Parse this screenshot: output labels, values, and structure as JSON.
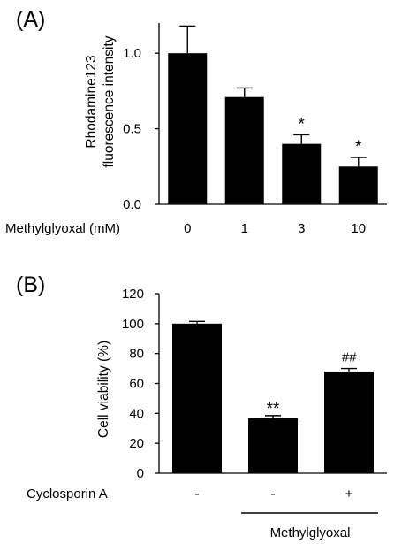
{
  "chart_data": [
    {
      "type": "bar",
      "panel_label": "(A)",
      "ylabel_lines": [
        "Rhodamine123",
        "fluorescence intensity"
      ],
      "x_axis_title": "Methylglyoxal (mM)",
      "categories": [
        "0",
        "1",
        "3",
        "10"
      ],
      "values": [
        1.0,
        0.71,
        0.4,
        0.25
      ],
      "errors": [
        0.18,
        0.06,
        0.06,
        0.06
      ],
      "annotations": [
        "",
        "",
        "*",
        "*"
      ],
      "ylim": [
        0,
        1.2
      ],
      "yticks": [
        0.0,
        0.5,
        1.0
      ],
      "ytick_labels": [
        "0.0",
        "0.5",
        "1.0"
      ],
      "bar_color": "#000000",
      "grid": false
    },
    {
      "type": "bar",
      "panel_label": "(B)",
      "ylabel": "Cell viability (%)",
      "x_axis_title": "Cyclosporin A",
      "categories": [
        "-",
        "-",
        "+"
      ],
      "values": [
        100,
        37,
        68
      ],
      "errors": [
        1.5,
        1.5,
        2
      ],
      "annotations": [
        "",
        "**",
        "##"
      ],
      "ylim": [
        0,
        120
      ],
      "yticks": [
        0,
        20,
        40,
        60,
        80,
        100,
        120
      ],
      "ytick_labels": [
        "0",
        "20",
        "40",
        "60",
        "80",
        "100",
        "120"
      ],
      "group_label": "Methylglyoxal",
      "bar_color": "#000000",
      "grid": false
    }
  ]
}
